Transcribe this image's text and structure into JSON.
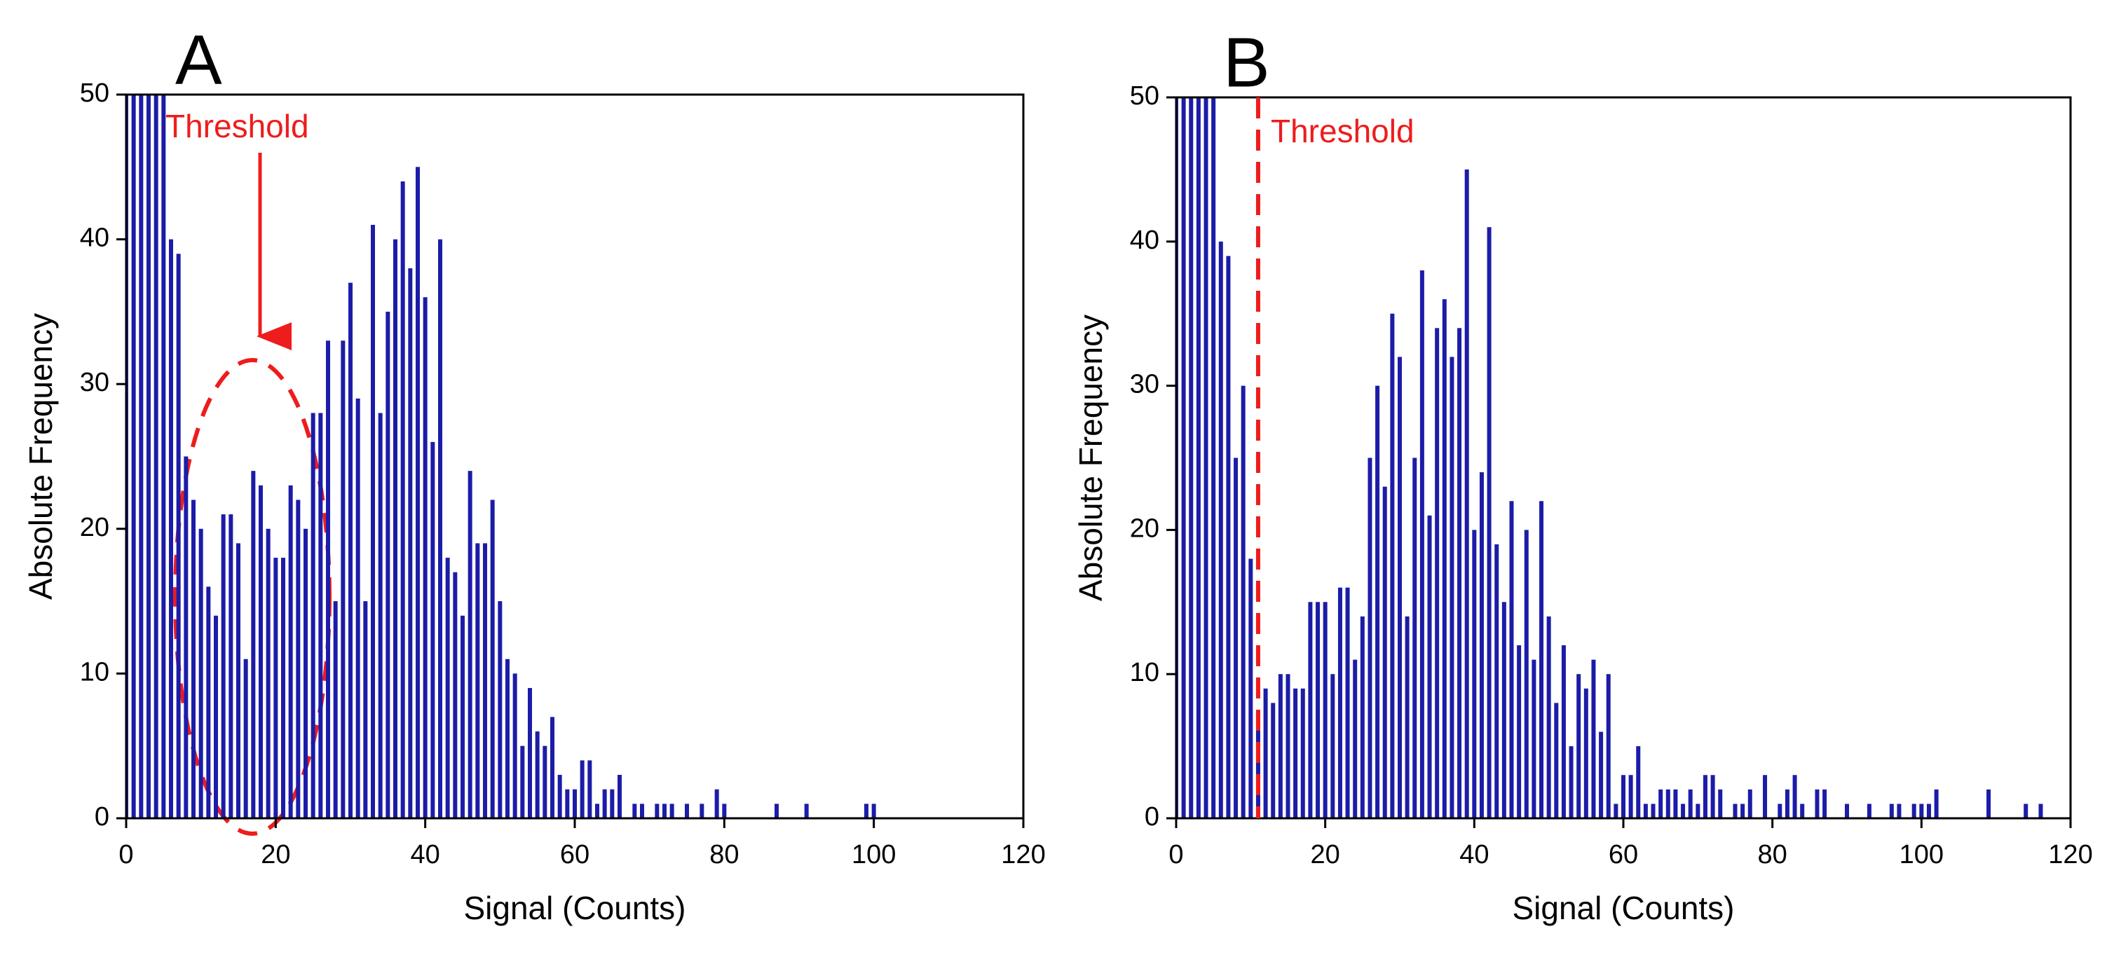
{
  "chart_data": [
    {
      "type": "bar",
      "panel": "A",
      "xlabel": "Signal (Counts)",
      "ylabel": "Absolute Frequency",
      "annotation": {
        "text": "Threshold"
      },
      "x": [
        0,
        1,
        2,
        3,
        4,
        5,
        6,
        7,
        8,
        9,
        10,
        11,
        12,
        13,
        14,
        15,
        16,
        17,
        18,
        19,
        20,
        21,
        22,
        23,
        24,
        25,
        26,
        27,
        28,
        29,
        30,
        31,
        32,
        33,
        34,
        35,
        36,
        37,
        38,
        39,
        40,
        41,
        42,
        43,
        44,
        45,
        46,
        47,
        48,
        49,
        50,
        51,
        52,
        53,
        54,
        55,
        56,
        57,
        58,
        59,
        60,
        61,
        62,
        63,
        64,
        65,
        66,
        68,
        69,
        71,
        72,
        73,
        75,
        77,
        79,
        80,
        87,
        91,
        99,
        100
      ],
      "values": [
        50,
        50,
        50,
        50,
        50,
        50,
        40,
        39,
        25,
        22,
        20,
        16,
        14,
        21,
        21,
        19,
        11,
        24,
        23,
        20,
        18,
        18,
        23,
        22,
        20,
        28,
        28,
        33,
        15,
        33,
        37,
        29,
        15,
        41,
        28,
        35,
        40,
        44,
        38,
        45,
        36,
        26,
        40,
        18,
        17,
        14,
        24,
        19,
        19,
        22,
        15,
        11,
        10,
        5,
        9,
        6,
        5,
        7,
        3,
        2,
        2,
        4,
        4,
        1,
        2,
        2,
        3,
        1,
        1,
        1,
        1,
        1,
        1,
        1,
        2,
        1,
        1,
        1,
        1,
        1
      ],
      "color": "#1c1ca8",
      "xlim": [
        0,
        120
      ],
      "ylim": [
        0,
        50
      ],
      "xticks": [
        0,
        20,
        40,
        60,
        80,
        100,
        120
      ],
      "yticks": [
        0,
        10,
        20,
        30,
        40,
        50
      ]
    },
    {
      "type": "bar",
      "panel": "B",
      "xlabel": "Signal (Counts)",
      "ylabel": "Absolute Frequency",
      "annotation": {
        "text": "Threshold",
        "x": 11
      },
      "x": [
        0,
        1,
        2,
        3,
        4,
        5,
        6,
        7,
        8,
        9,
        10,
        11,
        12,
        13,
        14,
        15,
        16,
        17,
        18,
        19,
        20,
        21,
        22,
        23,
        24,
        25,
        26,
        27,
        28,
        29,
        30,
        31,
        32,
        33,
        34,
        35,
        36,
        37,
        38,
        39,
        40,
        41,
        42,
        43,
        44,
        45,
        46,
        47,
        48,
        49,
        50,
        51,
        52,
        53,
        54,
        55,
        56,
        57,
        58,
        59,
        60,
        61,
        62,
        63,
        64,
        65,
        66,
        67,
        68,
        69,
        70,
        71,
        72,
        73,
        75,
        76,
        77,
        79,
        81,
        82,
        83,
        84,
        86,
        87,
        90,
        93,
        96,
        97,
        99,
        100,
        101,
        102,
        109,
        114,
        116
      ],
      "values": [
        50,
        50,
        50,
        50,
        50,
        50,
        40,
        39,
        25,
        30,
        18,
        7,
        9,
        8,
        10,
        10,
        9,
        9,
        15,
        15,
        15,
        10,
        16,
        16,
        11,
        14,
        25,
        30,
        23,
        35,
        32,
        14,
        25,
        38,
        21,
        34,
        36,
        32,
        34,
        45,
        20,
        24,
        41,
        19,
        15,
        22,
        12,
        20,
        11,
        22,
        14,
        8,
        12,
        5,
        10,
        9,
        11,
        6,
        10,
        1,
        3,
        3,
        5,
        1,
        1,
        2,
        2,
        2,
        1,
        2,
        1,
        3,
        3,
        2,
        1,
        1,
        2,
        3,
        1,
        2,
        3,
        1,
        2,
        2,
        1,
        1,
        1,
        1,
        1,
        1,
        1,
        2,
        2,
        1,
        1
      ],
      "color": "#1c1ca8",
      "xlim": [
        0,
        120
      ],
      "ylim": [
        0,
        50
      ],
      "xticks": [
        0,
        20,
        40,
        60,
        80,
        100,
        120
      ],
      "yticks": [
        0,
        10,
        20,
        30,
        40,
        50
      ]
    }
  ]
}
